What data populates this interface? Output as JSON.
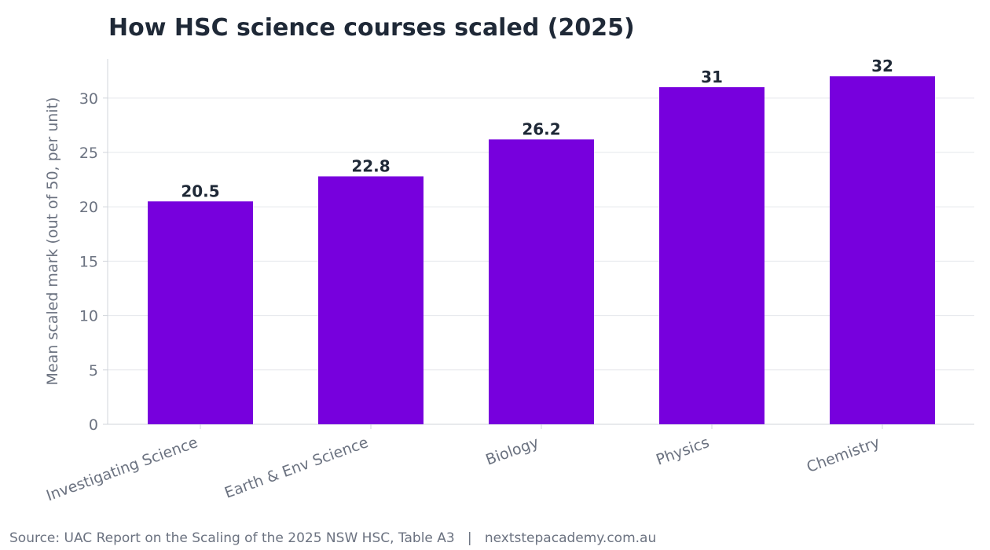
{
  "chart_data": {
    "type": "bar",
    "title": "How HSC science courses scaled (2025)",
    "xlabel": "",
    "ylabel": "Mean scaled mark (out of 50, per unit)",
    "categories": [
      "Investigating Science",
      "Earth & Env Science",
      "Biology",
      "Physics",
      "Chemistry"
    ],
    "values": [
      20.5,
      22.8,
      26.2,
      31,
      32
    ],
    "data_labels": [
      "20.5",
      "22.8",
      "26.2",
      "31",
      "32"
    ],
    "yticks": [
      0,
      5,
      10,
      15,
      20,
      25,
      30
    ],
    "ytick_labels": [
      "0",
      "5",
      "10",
      "15",
      "20",
      "25",
      "30"
    ],
    "ylim": [
      0,
      33.6
    ],
    "grid": true,
    "bar_color": "#7700dd",
    "grid_color": "#e5e7eb",
    "axis_color": "#d1d5db",
    "text_color": "#1f2937",
    "tick_color": "#6b7280"
  },
  "footer": {
    "source": "Source: UAC Report on the Scaling of the 2025 NSW HSC, Table A3   |   nextstepacademy.com.au"
  }
}
